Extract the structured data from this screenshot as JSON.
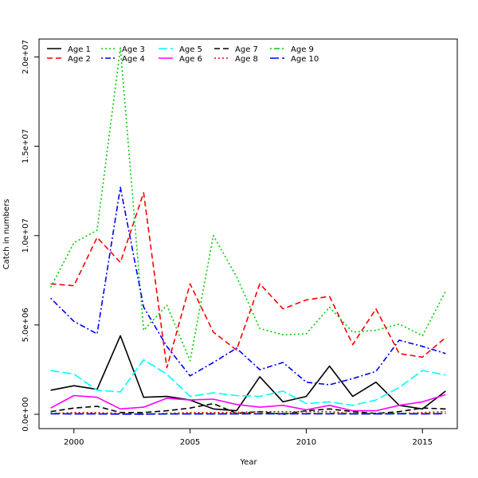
{
  "chart_data": {
    "type": "line",
    "title": "",
    "xlabel": "Year",
    "ylabel": "Catch in numbers",
    "xlim": [
      1998.5,
      2016.5
    ],
    "ylim": [
      -800000,
      21000000
    ],
    "xticks": [
      2000,
      2005,
      2010,
      2015
    ],
    "xtick_labels": [
      "2000",
      "2005",
      "2010",
      "2015"
    ],
    "yticks": [
      0,
      5000000,
      10000000,
      15000000,
      20000000
    ],
    "ytick_labels": [
      "0.0e+00",
      "5.0e+06",
      "1.0e+07",
      "1.5e+07",
      "2.0e+07"
    ],
    "x": [
      1999,
      2000,
      2001,
      2002,
      2003,
      2004,
      2005,
      2006,
      2007,
      2008,
      2009,
      2010,
      2011,
      2012,
      2013,
      2014,
      2015,
      2016
    ],
    "series": [
      {
        "name": "Age 1",
        "color": "#000000",
        "dash": "solid",
        "values": [
          1350000,
          1600000,
          1400000,
          4400000,
          950000,
          1000000,
          800000,
          300000,
          200000,
          2100000,
          700000,
          1000000,
          2700000,
          1000000,
          1800000,
          500000,
          300000,
          1300000
        ]
      },
      {
        "name": "Age 2",
        "color": "#ff0000",
        "dash": "dashed",
        "values": [
          7300000,
          7200000,
          9900000,
          8500000,
          12400000,
          2600000,
          7300000,
          4600000,
          3600000,
          7300000,
          5900000,
          6400000,
          6600000,
          3900000,
          5900000,
          3400000,
          3200000,
          4300000
        ]
      },
      {
        "name": "Age 3",
        "color": "#00cd00",
        "dash": "dotted",
        "values": [
          7100000,
          9600000,
          10300000,
          20500000,
          4700000,
          6100000,
          3000000,
          10000000,
          7700000,
          4800000,
          4450000,
          4500000,
          6000000,
          4600000,
          4700000,
          5050000,
          4400000,
          6900000
        ]
      },
      {
        "name": "Age 4",
        "color": "#0000ff",
        "dash": "dotdash",
        "values": [
          6500000,
          5200000,
          4500000,
          12700000,
          6000000,
          3800000,
          2150000,
          2900000,
          3700000,
          2500000,
          2900000,
          1800000,
          1650000,
          2000000,
          2400000,
          4150000,
          3800000,
          3400000
        ]
      },
      {
        "name": "Age 5",
        "color": "#00ffff",
        "dash": "longdash",
        "values": [
          2450000,
          2250000,
          1350000,
          1250000,
          3050000,
          2250000,
          1000000,
          1200000,
          1050000,
          1000000,
          1300000,
          600000,
          700000,
          500000,
          800000,
          1500000,
          2450000,
          2200000
        ]
      },
      {
        "name": "Age 6",
        "color": "#ff00ff",
        "dash": "solid",
        "values": [
          350000,
          1050000,
          950000,
          300000,
          400000,
          900000,
          800000,
          850000,
          550000,
          400000,
          500000,
          250000,
          500000,
          200000,
          200000,
          500000,
          700000,
          1100000
        ]
      },
      {
        "name": "Age 7",
        "color": "#000000",
        "dash": "dashed",
        "values": [
          150000,
          350000,
          450000,
          100000,
          100000,
          200000,
          350000,
          600000,
          50000,
          150000,
          0,
          200000,
          300000,
          150000,
          50000,
          150000,
          350000,
          300000
        ]
      },
      {
        "name": "Age 8",
        "color": "#ff0000",
        "dash": "dotted",
        "values": [
          50000,
          100000,
          100000,
          50000,
          0,
          50000,
          100000,
          100000,
          100000,
          150000,
          150000,
          150000,
          150000,
          50000,
          50000,
          50000,
          100000,
          150000
        ]
      },
      {
        "name": "Age 9",
        "color": "#00cd00",
        "dash": "dotdash",
        "values": [
          50000,
          30000,
          40000,
          20000,
          20000,
          30000,
          30000,
          30000,
          40000,
          50000,
          60000,
          50000,
          60000,
          50000,
          40000,
          50000,
          40000,
          60000
        ]
      },
      {
        "name": "Age 10",
        "color": "#0000ff",
        "dash": "longdash",
        "values": [
          30000,
          20000,
          20000,
          10000,
          10000,
          20000,
          20000,
          20000,
          20000,
          30000,
          30000,
          30000,
          30000,
          20000,
          20000,
          30000,
          20000,
          40000
        ]
      }
    ],
    "legend": {
      "position": "top-left",
      "columns": 5
    }
  }
}
